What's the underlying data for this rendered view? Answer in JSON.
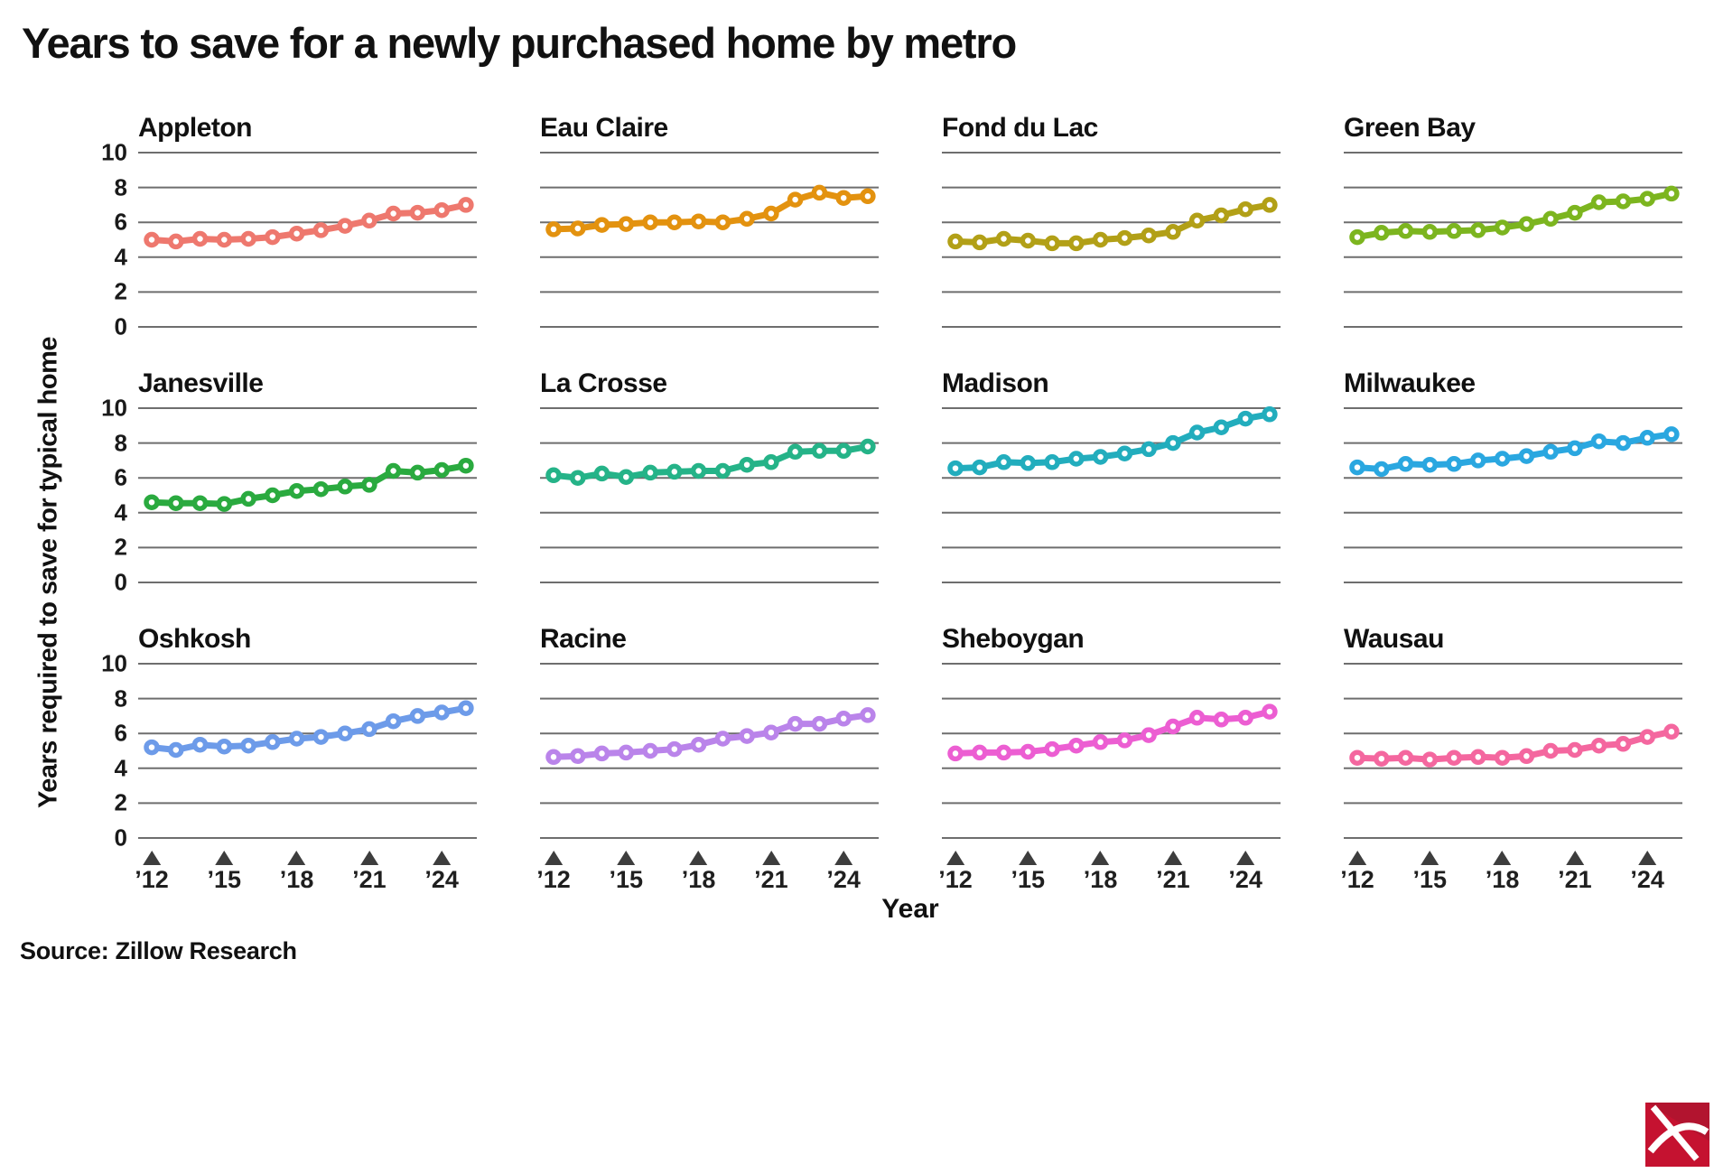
{
  "page": {
    "title": "Years to save for a newly purchased home by metro",
    "ylabel": "Years required to save for typical home",
    "xlabel": "Year",
    "source": "Source: Zillow Research"
  },
  "chart_data": {
    "type": "line",
    "layout": "small-multiples-3x4",
    "title": "Years to save for a newly purchased home by metro",
    "xlabel": "Year",
    "ylabel": "Years required to save for typical home",
    "x_years": [
      2012,
      2013,
      2014,
      2015,
      2016,
      2017,
      2018,
      2019,
      2020,
      2021,
      2022,
      2023,
      2024,
      2025
    ],
    "xtick_years": [
      2012,
      2015,
      2018,
      2021,
      2024
    ],
    "xtick_labels": [
      "’12",
      "’15",
      "’18",
      "’21",
      "’24"
    ],
    "ylim": [
      0,
      10
    ],
    "yticks": [
      0,
      2,
      4,
      6,
      8,
      10
    ],
    "grid": true,
    "gridline_color": "#6e6e6e",
    "tick_marker": "triangle-up",
    "tick_marker_color": "#3d3d3d",
    "marker_style": "open-circle",
    "series": [
      {
        "name": "Appleton",
        "color": "#ee786e",
        "values": [
          5.0,
          4.9,
          5.05,
          5.0,
          5.05,
          5.15,
          5.35,
          5.55,
          5.8,
          6.1,
          6.5,
          6.55,
          6.7,
          7.0
        ]
      },
      {
        "name": "Eau Claire",
        "color": "#e3920f",
        "values": [
          5.6,
          5.65,
          5.85,
          5.9,
          6.0,
          6.0,
          6.05,
          6.0,
          6.2,
          6.5,
          7.3,
          7.7,
          7.4,
          7.5
        ]
      },
      {
        "name": "Fond du Lac",
        "color": "#b2a017",
        "values": [
          4.9,
          4.85,
          5.05,
          4.95,
          4.8,
          4.8,
          5.0,
          5.1,
          5.25,
          5.45,
          6.1,
          6.4,
          6.75,
          7.0
        ]
      },
      {
        "name": "Green Bay",
        "color": "#7cb51f",
        "values": [
          5.15,
          5.4,
          5.5,
          5.45,
          5.5,
          5.55,
          5.7,
          5.9,
          6.2,
          6.55,
          7.15,
          7.2,
          7.35,
          7.65
        ]
      },
      {
        "name": "Janesville",
        "color": "#2aaa3f",
        "values": [
          4.6,
          4.55,
          4.55,
          4.5,
          4.8,
          5.0,
          5.25,
          5.35,
          5.5,
          5.6,
          6.4,
          6.3,
          6.45,
          6.7
        ]
      },
      {
        "name": "La Crosse",
        "color": "#25b388",
        "values": [
          6.15,
          6.0,
          6.25,
          6.05,
          6.3,
          6.35,
          6.4,
          6.4,
          6.75,
          6.9,
          7.5,
          7.55,
          7.55,
          7.8
        ]
      },
      {
        "name": "Madison",
        "color": "#22adbd",
        "values": [
          6.55,
          6.6,
          6.9,
          6.85,
          6.9,
          7.1,
          7.2,
          7.4,
          7.65,
          8.0,
          8.6,
          8.9,
          9.4,
          9.65
        ]
      },
      {
        "name": "Milwaukee",
        "color": "#2aa7e0",
        "values": [
          6.6,
          6.5,
          6.8,
          6.75,
          6.8,
          7.0,
          7.1,
          7.25,
          7.5,
          7.7,
          8.1,
          8.0,
          8.3,
          8.5
        ]
      },
      {
        "name": "Oshkosh",
        "color": "#6d9be9",
        "values": [
          5.2,
          5.05,
          5.35,
          5.25,
          5.3,
          5.5,
          5.7,
          5.8,
          6.0,
          6.25,
          6.7,
          7.0,
          7.2,
          7.45
        ]
      },
      {
        "name": "Racine",
        "color": "#ba84ea",
        "values": [
          4.65,
          4.7,
          4.85,
          4.9,
          5.0,
          5.1,
          5.35,
          5.7,
          5.85,
          6.05,
          6.55,
          6.55,
          6.85,
          7.05
        ]
      },
      {
        "name": "Sheboygan",
        "color": "#ec5ed2",
        "values": [
          4.85,
          4.9,
          4.9,
          4.95,
          5.1,
          5.3,
          5.5,
          5.6,
          5.9,
          6.4,
          6.9,
          6.8,
          6.9,
          7.25
        ]
      },
      {
        "name": "Wausau",
        "color": "#f4679f",
        "values": [
          4.6,
          4.55,
          4.6,
          4.5,
          4.6,
          4.65,
          4.6,
          4.7,
          5.0,
          5.05,
          5.3,
          5.4,
          5.8,
          6.1
        ]
      }
    ]
  },
  "logo": {
    "background": "#c51230",
    "glyph": "pickaxe",
    "glyph_color": "#ffffff"
  }
}
